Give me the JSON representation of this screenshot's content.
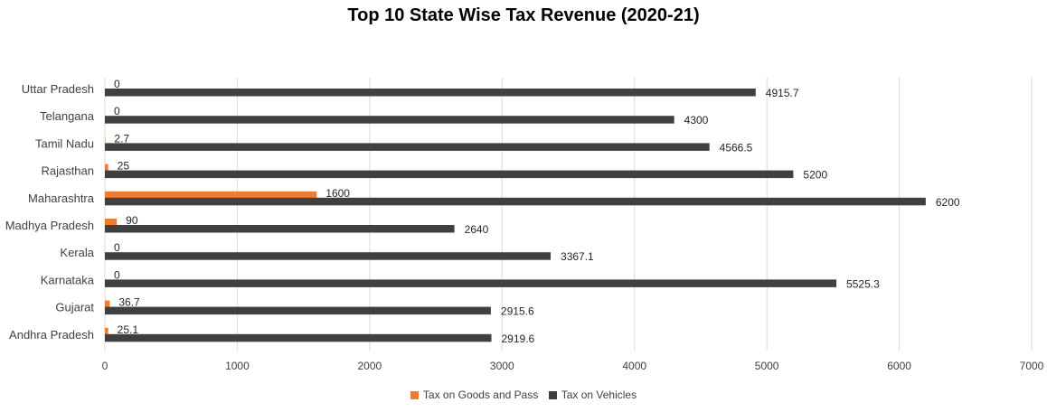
{
  "chart_data": {
    "type": "bar",
    "orientation": "horizontal",
    "title": "Top 10 State Wise Tax Revenue (2020-21)",
    "categories": [
      "Uttar Pradesh",
      "Telangana",
      "Tamil Nadu",
      "Rajasthan",
      "Maharashtra",
      "Madhya Pradesh",
      "Kerala",
      "Karnataka",
      "Gujarat",
      "Andhra Pradesh"
    ],
    "series": [
      {
        "name": "Tax on Goods and Pass",
        "color": "#ED7D31",
        "values": [
          0,
          0,
          2.7,
          25,
          1600,
          90,
          0,
          0,
          36.7,
          25.1
        ],
        "labels": [
          "0",
          "0",
          "2.7",
          "25",
          "1600",
          "90",
          "0",
          "0",
          "36.7",
          "25.1"
        ]
      },
      {
        "name": "Tax on Vehicles",
        "color": "#404040",
        "values": [
          4915.7,
          4300,
          4566.5,
          5200,
          6200,
          2640,
          3367.1,
          5525.3,
          2915.6,
          2919.6
        ],
        "labels": [
          "4915.7",
          "4300",
          "4566.5",
          "5200",
          "6200",
          "2640",
          "3367.1",
          "5525.3",
          "2915.6",
          "2919.6"
        ]
      }
    ],
    "xlim": [
      0,
      7000
    ],
    "xticks": [
      0,
      1000,
      2000,
      3000,
      4000,
      5000,
      6000,
      7000
    ],
    "xticklabels": [
      "0",
      "1000",
      "2000",
      "3000",
      "4000",
      "5000",
      "6000",
      "7000"
    ],
    "grid": true,
    "legend": "bottom-center",
    "colors": {
      "gridline": "#D9D9D9"
    }
  }
}
